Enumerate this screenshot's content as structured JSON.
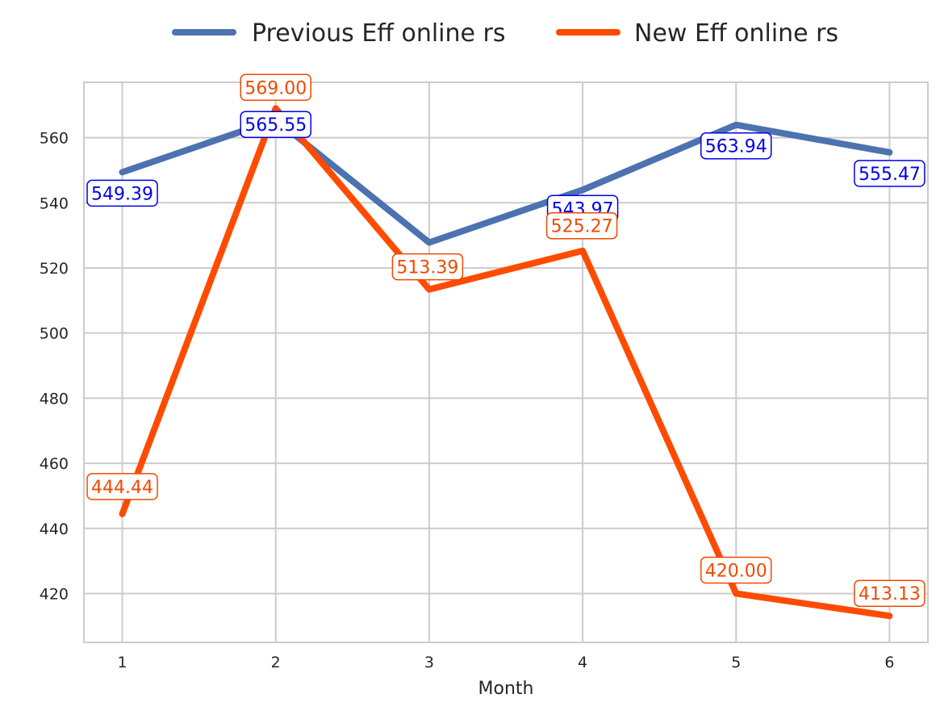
{
  "chart_data": {
    "type": "line",
    "title": "",
    "xlabel": "Month",
    "ylabel": "",
    "x": [
      1,
      2,
      3,
      4,
      5,
      6
    ],
    "xlim": [
      0.75,
      6.25
    ],
    "ylim": [
      405,
      577
    ],
    "yticks": [
      420,
      440,
      460,
      480,
      500,
      520,
      540,
      560
    ],
    "grid": true,
    "legend_position": "top-center, outside plot",
    "series": [
      {
        "name": "Previous Eff online rs",
        "color": "#4C72B0",
        "label_color": "#0000ee",
        "values": [
          549.39,
          565.55,
          527.8,
          543.97,
          563.94,
          555.47
        ],
        "labels": [
          "549.39",
          "565.55",
          "",
          "543.97",
          "563.94",
          "555.47"
        ]
      },
      {
        "name": "New Eff online rs",
        "color": "#FF4B00",
        "label_color": "#f04a00",
        "values": [
          444.44,
          569.0,
          513.39,
          525.27,
          420.0,
          413.13
        ],
        "labels": [
          "444.44",
          "569.00",
          "513.39",
          "525.27",
          "420.00",
          "413.13"
        ]
      }
    ]
  }
}
